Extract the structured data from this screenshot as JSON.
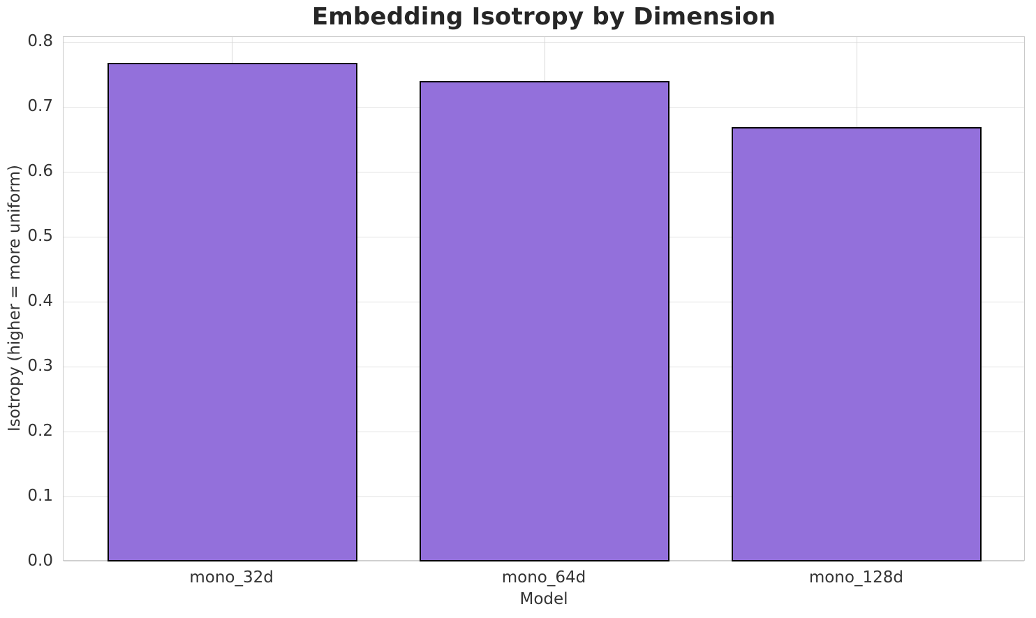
{
  "chart_data": {
    "type": "bar",
    "title": "Embedding Isotropy by Dimension",
    "xlabel": "Model",
    "ylabel": "Isotropy (higher = more uniform)",
    "categories": [
      "mono_32d",
      "mono_64d",
      "mono_128d"
    ],
    "values": [
      0.768,
      0.74,
      0.669
    ],
    "yticks": [
      0.0,
      0.1,
      0.2,
      0.3,
      0.4,
      0.5,
      0.6,
      0.7,
      0.8
    ],
    "ytick_labels": [
      "0.0",
      "0.1",
      "0.2",
      "0.3",
      "0.4",
      "0.5",
      "0.6",
      "0.7",
      "0.8"
    ],
    "ylim": [
      0.0,
      0.8075
    ],
    "grid": true,
    "legend": null,
    "colors": {
      "bar_fill": "#9370DB",
      "bar_edge": "#000000",
      "grid_horizontal": "#e2e2e2",
      "grid_vertical": "#d8d8d8",
      "spine": "#c9c9c9",
      "title_text": "#262626",
      "tick_text": "#333333",
      "background": "#ffffff"
    }
  }
}
